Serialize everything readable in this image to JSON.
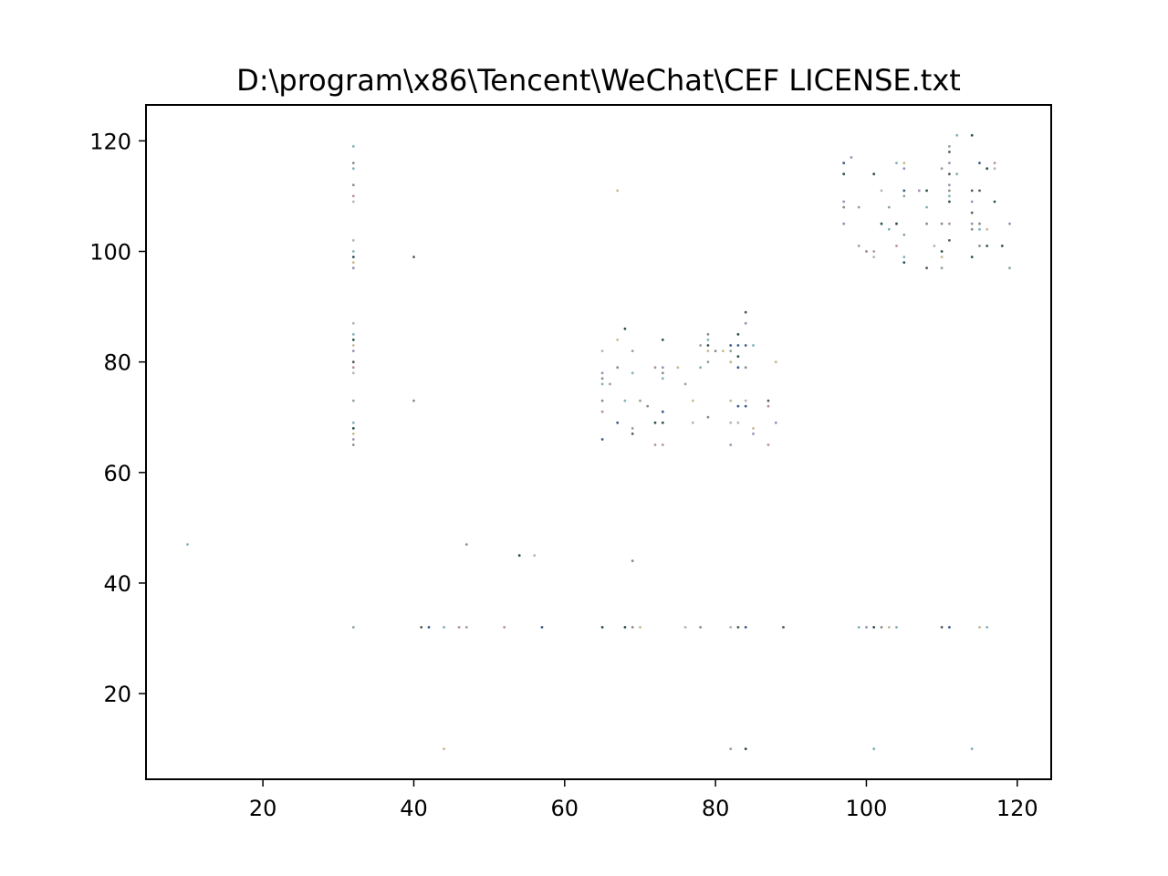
{
  "figure": {
    "title": "D:\\program\\x86\\Tencent\\WeChat\\CEF LICENSE.txt"
  },
  "chart_data": {
    "type": "scatter",
    "title": "D:\\program\\x86\\Tencent\\WeChat\\CEF LICENSE.txt",
    "xlabel": "",
    "ylabel": "",
    "xlim": [
      4.5,
      124.5
    ],
    "ylim": [
      4.5,
      126.5
    ],
    "xticks": [
      20,
      40,
      60,
      80,
      100,
      120
    ],
    "yticks": [
      20,
      40,
      60,
      80,
      100,
      120
    ],
    "grid": false,
    "legend": "none",
    "marker_colors": [
      "#5a5a5a",
      "#8c8c8c",
      "#b4b4b4",
      "#2f4f4f",
      "#8fa88f",
      "#9a8fb5",
      "#b58fa8",
      "#7fb2b8",
      "#3d5a8a",
      "#c9b98f"
    ],
    "points": [
      [
        10,
        47
      ],
      [
        47,
        47
      ],
      [
        54,
        45
      ],
      [
        56,
        45
      ],
      [
        69,
        44
      ],
      [
        44,
        10
      ],
      [
        82,
        10
      ],
      [
        84,
        10
      ],
      [
        101,
        10
      ],
      [
        114,
        10
      ],
      [
        32,
        32
      ],
      [
        41,
        32
      ],
      [
        42,
        32
      ],
      [
        44,
        32
      ],
      [
        46,
        32
      ],
      [
        47,
        32
      ],
      [
        52,
        32
      ],
      [
        57,
        32
      ],
      [
        65,
        32
      ],
      [
        68,
        32
      ],
      [
        69,
        32
      ],
      [
        70,
        32
      ],
      [
        76,
        32
      ],
      [
        78,
        32
      ],
      [
        82,
        32
      ],
      [
        83,
        32
      ],
      [
        84,
        32
      ],
      [
        89,
        32
      ],
      [
        99,
        32
      ],
      [
        100,
        32
      ],
      [
        101,
        32
      ],
      [
        102,
        32
      ],
      [
        103,
        32
      ],
      [
        104,
        32
      ],
      [
        110,
        32
      ],
      [
        111,
        32
      ],
      [
        115,
        32
      ],
      [
        116,
        32
      ],
      [
        32,
        119
      ],
      [
        32,
        116
      ],
      [
        32,
        115
      ],
      [
        32,
        112
      ],
      [
        32,
        110
      ],
      [
        32,
        109
      ],
      [
        32,
        102
      ],
      [
        32,
        100
      ],
      [
        32,
        99
      ],
      [
        32,
        98
      ],
      [
        32,
        97
      ],
      [
        32,
        87
      ],
      [
        32,
        85
      ],
      [
        32,
        84
      ],
      [
        32,
        83
      ],
      [
        32,
        82
      ],
      [
        32,
        80
      ],
      [
        32,
        79
      ],
      [
        32,
        78
      ],
      [
        32,
        73
      ],
      [
        32,
        69
      ],
      [
        32,
        68
      ],
      [
        32,
        67
      ],
      [
        32,
        66
      ],
      [
        32,
        65
      ],
      [
        40,
        99
      ],
      [
        40,
        73
      ],
      [
        65,
        82
      ],
      [
        65,
        78
      ],
      [
        65,
        77
      ],
      [
        65,
        76
      ],
      [
        65,
        73
      ],
      [
        65,
        71
      ],
      [
        65,
        66
      ],
      [
        66,
        76
      ],
      [
        67,
        111
      ],
      [
        67,
        84
      ],
      [
        67,
        79
      ],
      [
        67,
        69
      ],
      [
        68,
        86
      ],
      [
        68,
        73
      ],
      [
        69,
        82
      ],
      [
        69,
        78
      ],
      [
        69,
        68
      ],
      [
        69,
        67
      ],
      [
        70,
        73
      ],
      [
        71,
        72
      ],
      [
        72,
        79
      ],
      [
        72,
        69
      ],
      [
        72,
        65
      ],
      [
        73,
        84
      ],
      [
        73,
        79
      ],
      [
        73,
        78
      ],
      [
        73,
        77
      ],
      [
        73,
        71
      ],
      [
        73,
        69
      ],
      [
        73,
        65
      ],
      [
        75,
        79
      ],
      [
        76,
        76
      ],
      [
        77,
        73
      ],
      [
        77,
        69
      ],
      [
        78,
        83
      ],
      [
        78,
        79
      ],
      [
        79,
        85
      ],
      [
        79,
        84
      ],
      [
        79,
        83
      ],
      [
        79,
        82
      ],
      [
        79,
        80
      ],
      [
        79,
        70
      ],
      [
        80,
        82
      ],
      [
        81,
        82
      ],
      [
        82,
        83
      ],
      [
        82,
        82
      ],
      [
        82,
        80
      ],
      [
        82,
        73
      ],
      [
        82,
        69
      ],
      [
        82,
        65
      ],
      [
        83,
        85
      ],
      [
        83,
        83
      ],
      [
        83,
        81
      ],
      [
        83,
        79
      ],
      [
        83,
        72
      ],
      [
        83,
        69
      ],
      [
        84,
        89
      ],
      [
        84,
        87
      ],
      [
        84,
        83
      ],
      [
        84,
        79
      ],
      [
        84,
        73
      ],
      [
        84,
        72
      ],
      [
        85,
        83
      ],
      [
        85,
        68
      ],
      [
        85,
        67
      ],
      [
        87,
        73
      ],
      [
        87,
        72
      ],
      [
        87,
        65
      ],
      [
        88,
        80
      ],
      [
        88,
        69
      ],
      [
        97,
        116
      ],
      [
        97,
        114
      ],
      [
        97,
        109
      ],
      [
        97,
        108
      ],
      [
        97,
        105
      ],
      [
        98,
        117
      ],
      [
        99,
        108
      ],
      [
        99,
        101
      ],
      [
        100,
        100
      ],
      [
        101,
        114
      ],
      [
        101,
        100
      ],
      [
        101,
        99
      ],
      [
        102,
        111
      ],
      [
        102,
        105
      ],
      [
        103,
        108
      ],
      [
        103,
        104
      ],
      [
        104,
        116
      ],
      [
        104,
        105
      ],
      [
        104,
        101
      ],
      [
        105,
        116
      ],
      [
        105,
        115
      ],
      [
        105,
        111
      ],
      [
        105,
        110
      ],
      [
        105,
        103
      ],
      [
        105,
        99
      ],
      [
        105,
        98
      ],
      [
        107,
        111
      ],
      [
        108,
        111
      ],
      [
        108,
        108
      ],
      [
        108,
        105
      ],
      [
        108,
        97
      ],
      [
        109,
        101
      ],
      [
        110,
        115
      ],
      [
        110,
        105
      ],
      [
        110,
        100
      ],
      [
        110,
        99
      ],
      [
        110,
        97
      ],
      [
        111,
        119
      ],
      [
        111,
        118
      ],
      [
        111,
        116
      ],
      [
        111,
        114
      ],
      [
        111,
        112
      ],
      [
        111,
        111
      ],
      [
        111,
        110
      ],
      [
        111,
        109
      ],
      [
        111,
        105
      ],
      [
        111,
        102
      ],
      [
        112,
        121
      ],
      [
        112,
        114
      ],
      [
        114,
        121
      ],
      [
        114,
        111
      ],
      [
        114,
        109
      ],
      [
        114,
        107
      ],
      [
        114,
        105
      ],
      [
        114,
        104
      ],
      [
        114,
        99
      ],
      [
        115,
        116
      ],
      [
        115,
        111
      ],
      [
        115,
        105
      ],
      [
        115,
        104
      ],
      [
        115,
        101
      ],
      [
        116,
        115
      ],
      [
        116,
        104
      ],
      [
        116,
        101
      ],
      [
        117,
        116
      ],
      [
        117,
        115
      ],
      [
        117,
        109
      ],
      [
        118,
        101
      ],
      [
        119,
        105
      ],
      [
        119,
        97
      ]
    ]
  }
}
